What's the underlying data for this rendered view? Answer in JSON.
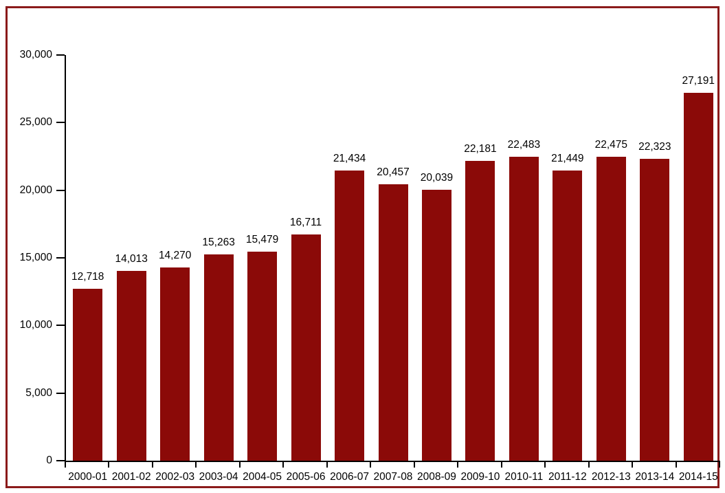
{
  "page": {
    "background": "#FFFFFF",
    "frame_border_color": "#8B1A1A"
  },
  "chart_data": {
    "type": "bar",
    "title": "",
    "xlabel": "",
    "ylabel": "",
    "categories": [
      "2000-01",
      "2001-02",
      "2002-03",
      "2003-04",
      "2004-05",
      "2005-06",
      "2006-07",
      "2007-08",
      "2008-09",
      "2009-10",
      "2010-11",
      "2011-12",
      "2012-13",
      "2013-14",
      "2014-15"
    ],
    "values": [
      12718,
      14013,
      14270,
      15263,
      15479,
      16711,
      21434,
      20457,
      20039,
      22181,
      22483,
      21449,
      22475,
      22323,
      27191
    ],
    "value_labels": [
      "12,718",
      "14,013",
      "14,270",
      "15,263",
      "15,479",
      "16,711",
      "21,434",
      "20,457",
      "20,039",
      "22,181",
      "22,483",
      "21,449",
      "22,475",
      "22,323",
      "27,191"
    ],
    "ylim": [
      0,
      30000
    ],
    "ytick_step": 5000,
    "ytick_labels": [
      "0",
      "5,000",
      "10,000",
      "15,000",
      "20,000",
      "25,000",
      "30,000"
    ],
    "bar_color": "#8B0A08",
    "axis_color": "#000000",
    "text_color": "#000000",
    "grid": false,
    "legend_position": "none"
  }
}
